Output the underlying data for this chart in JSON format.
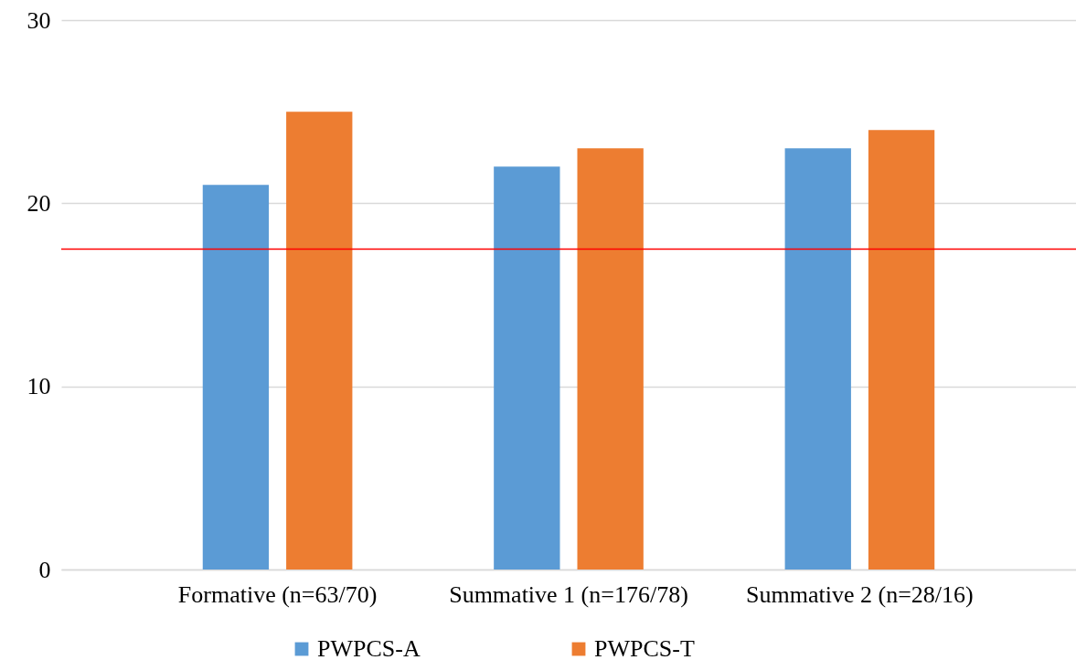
{
  "chart_data": {
    "type": "bar",
    "categories": [
      "Formative (n=63/70)",
      "Summative 1 (n=176/78)",
      "Summative 2 (n=28/16)"
    ],
    "series": [
      {
        "name": "PWPCS-A",
        "color": "#5b9bd5",
        "values": [
          21,
          22,
          23
        ]
      },
      {
        "name": "PWPCS-T",
        "color": "#ed7d31",
        "values": [
          25,
          23,
          24
        ]
      }
    ],
    "ylim": [
      0,
      30
    ],
    "yticks": [
      0,
      10,
      20,
      30
    ],
    "grid": "y",
    "legend": "bottom",
    "ref_lines": [
      {
        "axis": "y",
        "value": 17.5,
        "color": "#ff0000"
      }
    ]
  }
}
